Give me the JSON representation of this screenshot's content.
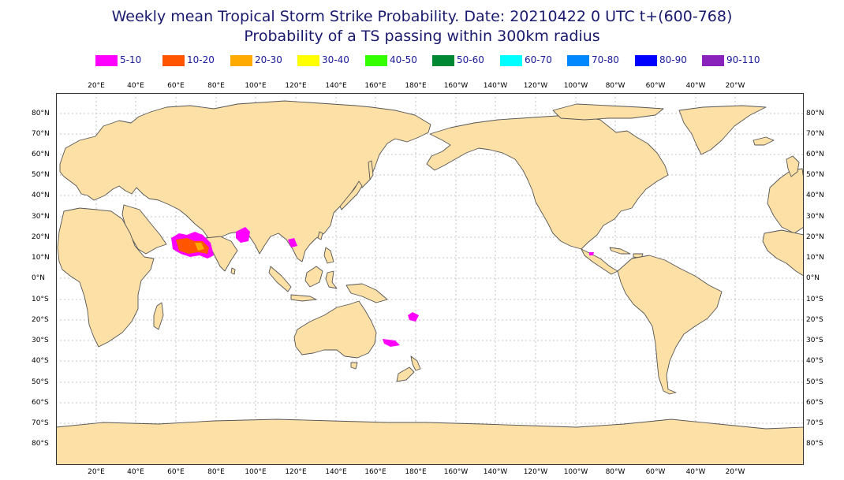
{
  "title_line1": "Weekly mean Tropical Storm Strike Probability. Date: 20210422  0 UTC    t+(600-768)",
  "title_line2": "Probability of a TS passing within  300km radius",
  "legend": [
    {
      "label": "5-10",
      "color": "#ff00ff"
    },
    {
      "label": "10-20",
      "color": "#ff5500"
    },
    {
      "label": "20-30",
      "color": "#ffaa00"
    },
    {
      "label": "30-40",
      "color": "#ffff00"
    },
    {
      "label": "40-50",
      "color": "#33ff00"
    },
    {
      "label": "50-60",
      "color": "#008833"
    },
    {
      "label": "60-70",
      "color": "#00ffff"
    },
    {
      "label": "70-80",
      "color": "#0088ff"
    },
    {
      "label": "80-90",
      "color": "#0000ff"
    },
    {
      "label": "90-110",
      "color": "#8822bb"
    }
  ],
  "lon_labels": [
    "20°E",
    "40°E",
    "60°E",
    "80°E",
    "100°E",
    "120°E",
    "140°E",
    "160°E",
    "180°E",
    "160°W",
    "140°W",
    "120°W",
    "100°W",
    "80°W",
    "60°W",
    "40°W",
    "20°W"
  ],
  "lat_labels": [
    "80°N",
    "70°N",
    "60°N",
    "50°N",
    "40°N",
    "30°N",
    "20°N",
    "10°N",
    "0°N",
    "10°S",
    "20°S",
    "30°S",
    "40°S",
    "50°S",
    "60°S",
    "70°S",
    "80°S"
  ],
  "colors": {
    "land": "#fce0a6",
    "coast": "#555555",
    "grid": "#b5b5b5",
    "title": "#1a1a6e"
  }
}
